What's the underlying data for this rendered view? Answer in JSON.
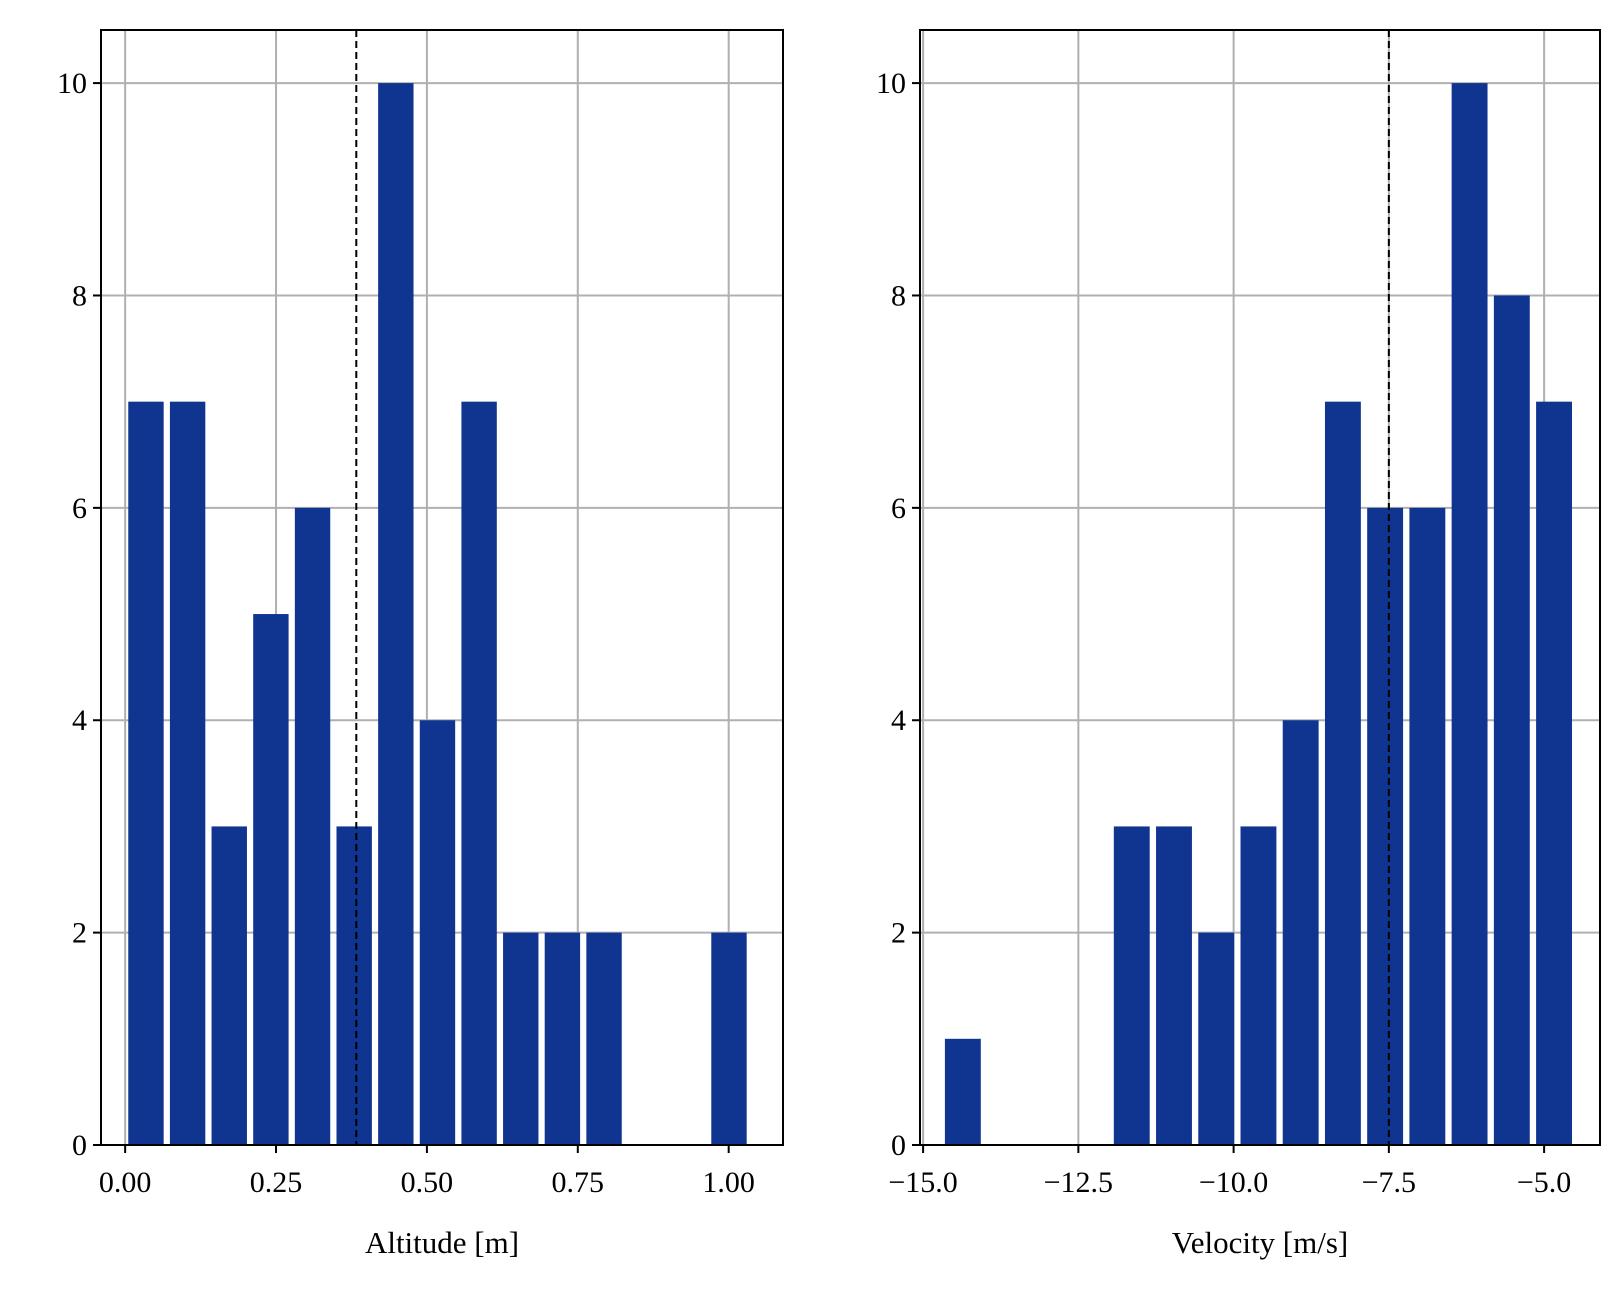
{
  "chart_data": [
    {
      "type": "bar",
      "xlabel": "Altitude [m]",
      "ylabel": "",
      "xlim": [
        -0.04,
        1.09
      ],
      "ylim": [
        0,
        10.5
      ],
      "xticks": [
        0.0,
        0.25,
        0.5,
        0.75,
        1.0
      ],
      "xtick_labels": [
        "0.00",
        "0.25",
        "0.50",
        "0.75",
        "1.00"
      ],
      "yticks": [
        0,
        2,
        4,
        6,
        8,
        10
      ],
      "ytick_labels": [
        "0",
        "2",
        "4",
        "6",
        "8",
        "10"
      ],
      "grid": true,
      "bar_color": "#0f3591",
      "bin_edges": [
        0.0,
        0.069,
        0.138,
        0.207,
        0.276,
        0.345,
        0.414,
        0.483,
        0.552,
        0.621,
        0.69,
        0.759,
        0.828,
        0.897,
        0.966,
        1.035
      ],
      "counts": [
        7,
        7,
        3,
        5,
        6,
        3,
        10,
        4,
        7,
        2,
        2,
        2,
        0,
        0,
        2
      ],
      "vline": {
        "x": 0.383,
        "style": "dashed",
        "color": "#000000"
      }
    },
    {
      "type": "bar",
      "xlabel": "Velocity [m/s]",
      "ylabel": "",
      "xlim": [
        -15.05,
        -4.1
      ],
      "ylim": [
        0,
        10.5
      ],
      "xticks": [
        -15.0,
        -12.5,
        -10.0,
        -7.5,
        -5.0
      ],
      "xtick_labels": [
        "−15.0",
        "−12.5",
        "−10.0",
        "−7.5",
        "−5.0"
      ],
      "yticks": [
        0,
        2,
        4,
        6,
        8,
        10
      ],
      "ytick_labels": [
        "0",
        "2",
        "4",
        "6",
        "8",
        "10"
      ],
      "grid": true,
      "bar_color": "#0f3591",
      "bin_edges": [
        -14.7,
        -14.02,
        -13.34,
        -12.66,
        -11.98,
        -11.3,
        -10.62,
        -9.94,
        -9.26,
        -8.58,
        -7.9,
        -7.22,
        -6.54,
        -5.86,
        -5.18,
        -4.5
      ],
      "counts": [
        1,
        0,
        0,
        0,
        3,
        3,
        2,
        3,
        4,
        7,
        6,
        6,
        10,
        8,
        7
      ],
      "vline": {
        "x": -7.5,
        "style": "dashed",
        "color": "#000000"
      }
    }
  ]
}
